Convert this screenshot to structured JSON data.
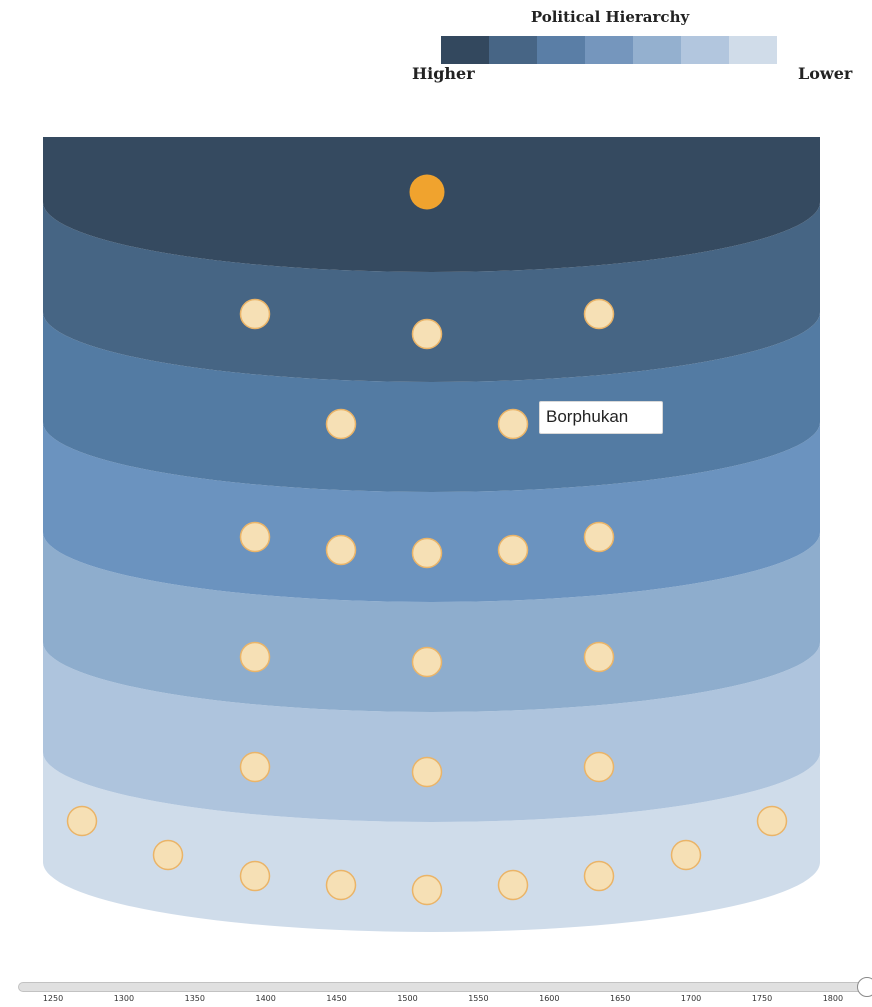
{
  "legend": {
    "title": "Political Hierarchy",
    "high_label": "Higher",
    "low_label": "Lower",
    "colors": [
      "#33485e",
      "#476585",
      "#5a7ea6",
      "#7596bd",
      "#94b0cf",
      "#b2c6de",
      "#d0dce9"
    ]
  },
  "tiers": [
    {
      "color": "#354a60",
      "nodes": 1
    },
    {
      "color": "#466584",
      "nodes": 3
    },
    {
      "color": "#537ba3",
      "nodes": 2
    },
    {
      "color": "#6b93bf",
      "nodes": 5
    },
    {
      "color": "#8eadcd",
      "nodes": 3
    },
    {
      "color": "#aec4dd",
      "nodes": 3
    },
    {
      "color": "#cfdcea",
      "nodes": 9
    }
  ],
  "node_colors": {
    "highlight_fill": "#f0a32e",
    "fill": "#f6e0b5",
    "stroke": "#eab468"
  },
  "tooltip": {
    "label": "Borphukan"
  },
  "timeline": {
    "ticks": [
      "1250",
      "1300",
      "1350",
      "1400",
      "1450",
      "1500",
      "1550",
      "1600",
      "1650",
      "1700",
      "1750",
      "1800"
    ],
    "selected": "1800"
  }
}
